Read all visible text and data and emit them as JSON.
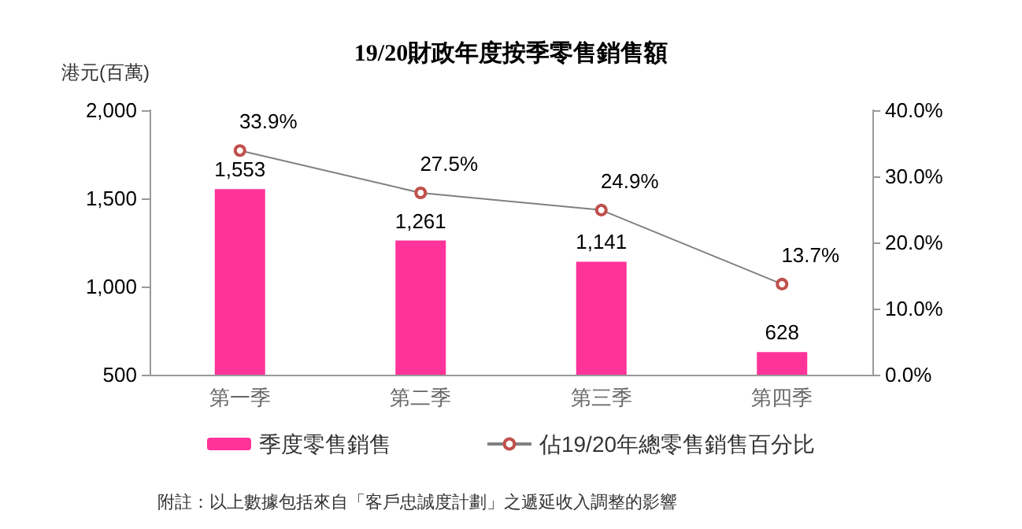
{
  "chart_data": {
    "type": "bar",
    "title": "19/20財政年度按季零售銷售額",
    "ylabel": "港元(百萬)",
    "categories": [
      "第一季",
      "第二季",
      "第三季",
      "第四季"
    ],
    "series": [
      {
        "name": "季度零售銷售",
        "color": "#ff3399",
        "values": [
          1553,
          1261,
          1141,
          628
        ],
        "value_labels": [
          "1,553",
          "1,261",
          "1,141",
          "628"
        ]
      },
      {
        "name": "佔19/20年總零售銷售百分比",
        "type": "line",
        "axis": "y2",
        "color": "#808080",
        "marker": "circle",
        "values": [
          33.9,
          27.5,
          24.9,
          13.7
        ],
        "value_labels": [
          "33.9%",
          "27.5%",
          "24.9%",
          "13.7%"
        ]
      }
    ],
    "ylim": [
      500,
      2000
    ],
    "yticks": [
      {
        "value": 500,
        "label": "500"
      },
      {
        "value": 1000,
        "label": "1,000"
      },
      {
        "value": 1500,
        "label": "1,500"
      },
      {
        "value": 2000,
        "label": "2,000"
      }
    ],
    "y2lim": [
      0,
      40
    ],
    "y2ticks": [
      {
        "value": 0,
        "label": "0.0%"
      },
      {
        "value": 10,
        "label": "10.0%"
      },
      {
        "value": 20,
        "label": "20.0%"
      },
      {
        "value": 30,
        "label": "30.0%"
      },
      {
        "value": 40,
        "label": "40.0%"
      }
    ],
    "grid": false,
    "legend": "bottom",
    "annotations": [
      "附註：以上數據包括來自「客戶忠誠度計劃」之遞延收入調整的影響"
    ]
  }
}
